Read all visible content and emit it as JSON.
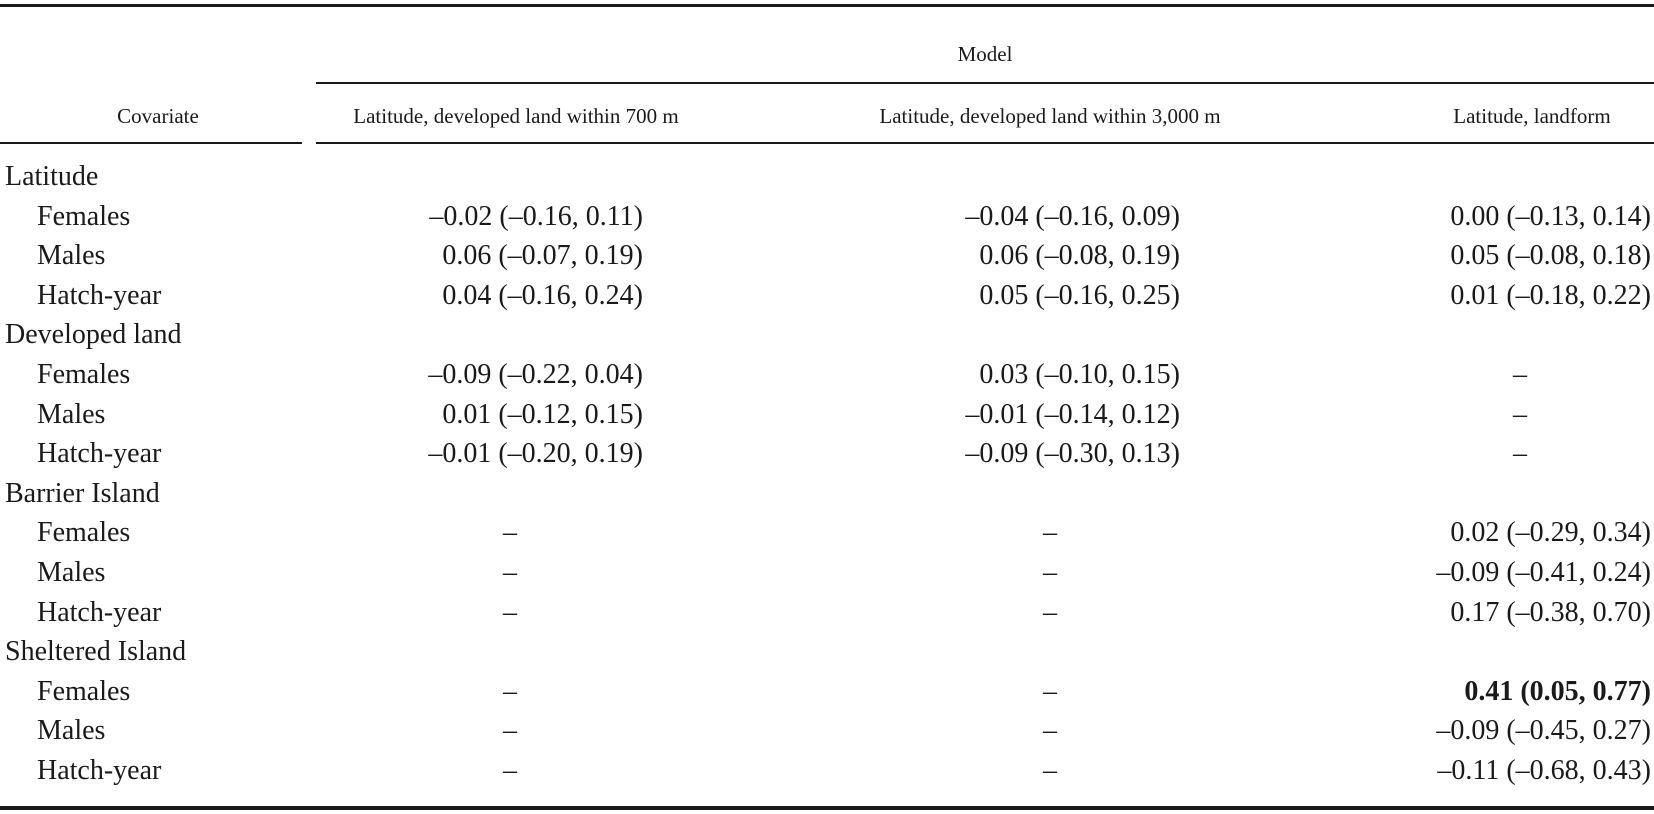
{
  "header": {
    "model_label": "Model",
    "covariate_label": "Covariate",
    "columns": [
      "Latitude, developed land within 700 m",
      "Latitude, developed land within 3,000 m",
      "Latitude, landform"
    ]
  },
  "groups": [
    {
      "name": "Latitude",
      "rows": [
        {
          "label": "Females",
          "values": [
            "–0.02 (–0.16, 0.11)",
            "–0.04 (–0.16, 0.09)",
            "0.00 (–0.13, 0.14)"
          ]
        },
        {
          "label": "Males",
          "values": [
            "0.06 (–0.07, 0.19)",
            "0.06 (–0.08, 0.19)",
            "0.05 (–0.08, 0.18)"
          ]
        },
        {
          "label": "Hatch-year",
          "values": [
            "0.04 (–0.16, 0.24)",
            "0.05 (–0.16, 0.25)",
            "0.01 (–0.18, 0.22)"
          ]
        }
      ]
    },
    {
      "name": "Developed land",
      "rows": [
        {
          "label": "Females",
          "values": [
            "–0.09 (–0.22, 0.04)",
            "0.03 (–0.10, 0.15)",
            "–"
          ]
        },
        {
          "label": "Males",
          "values": [
            "0.01 (–0.12, 0.15)",
            "–0.01 (–0.14, 0.12)",
            "–"
          ]
        },
        {
          "label": "Hatch-year",
          "values": [
            "–0.01 (–0.20, 0.19)",
            "–0.09 (–0.30, 0.13)",
            "–"
          ]
        }
      ]
    },
    {
      "name": "Barrier Island",
      "rows": [
        {
          "label": "Females",
          "values": [
            "–",
            "–",
            "0.02 (–0.29, 0.34)"
          ]
        },
        {
          "label": "Males",
          "values": [
            "–",
            "–",
            "–0.09 (–0.41, 0.24)"
          ]
        },
        {
          "label": "Hatch-year",
          "values": [
            "–",
            "–",
            "0.17 (–0.38, 0.70)"
          ]
        }
      ]
    },
    {
      "name": "Sheltered Island",
      "rows": [
        {
          "label": "Females",
          "values": [
            "–",
            "–",
            "0.41 (0.05, 0.77)"
          ],
          "bold": [
            false,
            false,
            true
          ]
        },
        {
          "label": "Males",
          "values": [
            "–",
            "–",
            "–0.09 (–0.45, 0.27)"
          ]
        },
        {
          "label": "Hatch-year",
          "values": [
            "–",
            "–",
            "–0.11 (–0.68, 0.43)"
          ]
        }
      ]
    }
  ]
}
